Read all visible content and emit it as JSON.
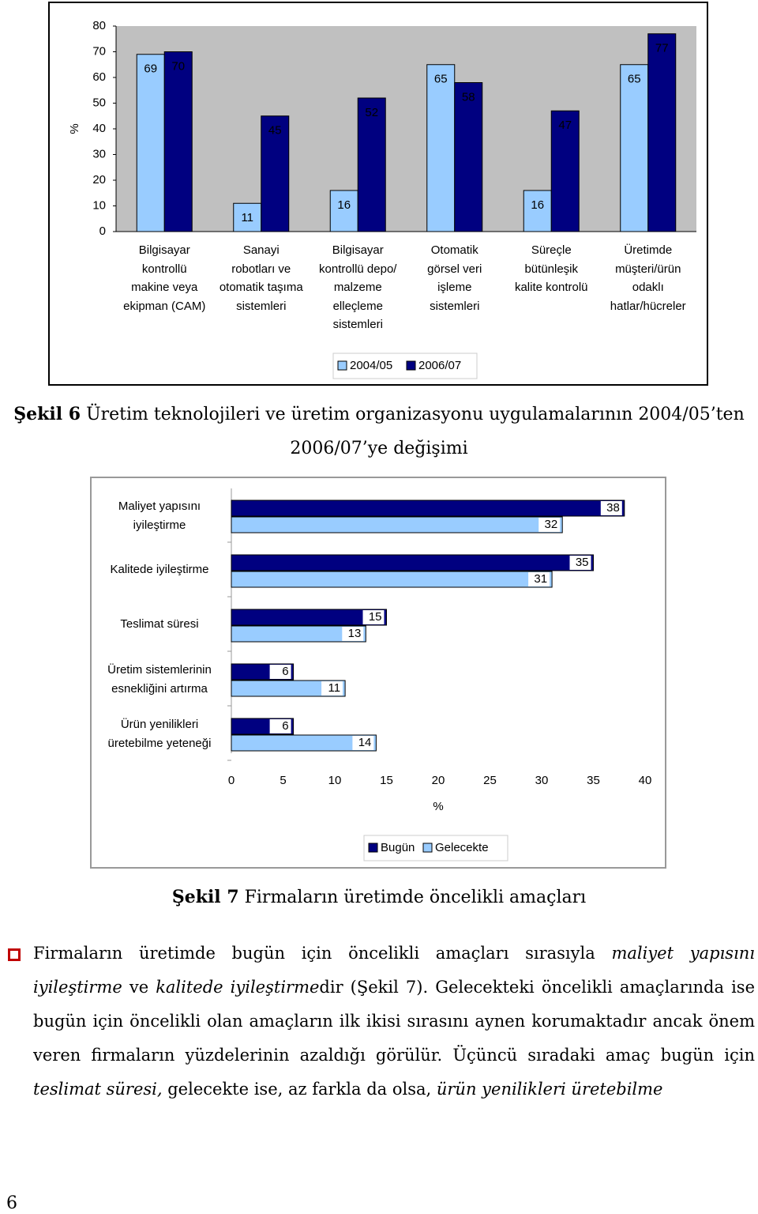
{
  "chart_data": [
    {
      "type": "bar",
      "ylabel": "%",
      "ylim": [
        0,
        80
      ],
      "yticks": [
        0,
        10,
        20,
        30,
        40,
        50,
        60,
        70,
        80
      ],
      "plot_background": "#c0c0c0",
      "legend": "bottom",
      "categories": [
        "Bilgisayar\nkontrollü\nmakine veya\nekipman (CAM)",
        "Sanayi\nrobotları ve\notomatik taşıma\nsistemleri",
        "Bilgisayar\nkontrollü depo/\nmalzeme\nelleçleme\nsistemleri",
        "Otomatik\ngörsel veri\nişleme\nsistemleri",
        "Süreçle\nbütünleşik\nkalite kontrolü",
        "Üretimde\nmüşteri/ürün\nodaklı\nhatlar/hücreler"
      ],
      "series": [
        {
          "name": "2004/05",
          "color": "#99ccff",
          "values": [
            69,
            11,
            16,
            65,
            16,
            65
          ]
        },
        {
          "name": "2006/07",
          "color": "#000080",
          "values": [
            70,
            45,
            52,
            58,
            47,
            77
          ]
        }
      ]
    },
    {
      "type": "barh",
      "xlabel": "%",
      "xlim": [
        0,
        40
      ],
      "xticks": [
        0,
        5,
        10,
        15,
        20,
        25,
        30,
        35,
        40
      ],
      "legend": "bottom",
      "categories": [
        "Maliyet yapısını\niyileştirme",
        "Kalitede iyileştirme",
        "Teslimat süresi",
        "Üretim sistemlerinin\nesnekliğini artırma",
        "Ürün yenilikleri\nüretebilme yeteneği"
      ],
      "series": [
        {
          "name": "Bugün",
          "color": "#000080",
          "values": [
            38,
            35,
            15,
            6,
            6
          ]
        },
        {
          "name": "Gelecekte",
          "color": "#99ccff",
          "values": [
            32,
            31,
            13,
            11,
            14
          ]
        }
      ]
    }
  ],
  "figure6": {
    "label": "Şekil 6",
    "caption": "Üretim teknolojileri ve üretim organizasyonu uygulamalarının 2004/05’ten 2006/07’ye değişimi"
  },
  "figure7": {
    "label": "Şekil 7",
    "caption": "Firmaların üretimde öncelikli amaçları"
  },
  "paragraph": [
    {
      "text": "Firmaların üretimde bugün için öncelikli amaçları sırasıyla ",
      "style": "normal"
    },
    {
      "text": "maliyet yapısını iyileştirme",
      "style": "italic"
    },
    {
      "text": " ve ",
      "style": "normal"
    },
    {
      "text": "kalitede iyileştirme",
      "style": "italic"
    },
    {
      "text": "dir (Şekil 7). Gelecekteki öncelikli amaçlarında ise bugün için öncelikli olan amaçların ilk ikisi sırasını aynen korumaktadır ancak önem veren firmaların yüzdelerinin azaldığı görülür. Üçüncü sıradaki amaç bugün için ",
      "style": "normal"
    },
    {
      "text": "teslimat süresi,",
      "style": "italic"
    },
    {
      "text": " gelecekte ise, az farkla da olsa, ",
      "style": "normal"
    },
    {
      "text": "ürün yenilikleri üretebilme",
      "style": "italic"
    }
  ],
  "page_number": "6"
}
